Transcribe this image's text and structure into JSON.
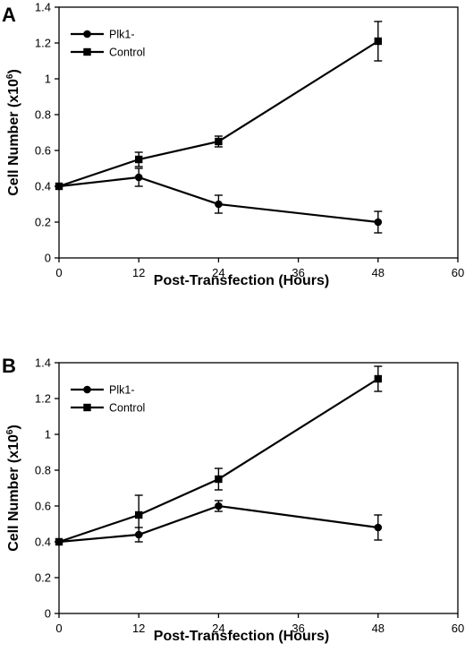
{
  "chart_data": [
    {
      "type": "line",
      "panel_label": "A",
      "xlabel": "Post-Transfection (Hours)",
      "ylabel": "Cell Number (x10",
      "ylabel_exponent": "6",
      "ylabel_close": ")",
      "xlim": [
        0,
        60
      ],
      "ylim": [
        0,
        1.4
      ],
      "x_ticks": [
        "0",
        "12",
        "24",
        "36",
        "48",
        "60"
      ],
      "y_ticks": [
        "0",
        "0.2",
        "0.4",
        "0.6",
        "0.8",
        "1",
        "1.2",
        "1.4"
      ],
      "grid": false,
      "legend_position": "top-left",
      "series": [
        {
          "name": "Plk1-",
          "marker": "circle",
          "x": [
            0,
            12,
            24,
            48
          ],
          "y": [
            0.4,
            0.45,
            0.3,
            0.2
          ],
          "error": [
            0,
            0.05,
            0.05,
            0.06
          ]
        },
        {
          "name": "Control",
          "marker": "square",
          "x": [
            0,
            12,
            24,
            48
          ],
          "y": [
            0.4,
            0.55,
            0.65,
            1.21
          ],
          "error": [
            0,
            0.04,
            0.03,
            0.11
          ]
        }
      ]
    },
    {
      "type": "line",
      "panel_label": "B",
      "xlabel": "Post-Transfection (Hours)",
      "ylabel": "Cell Number (x10",
      "ylabel_exponent": "6",
      "ylabel_close": ")",
      "xlim": [
        0,
        60
      ],
      "ylim": [
        0,
        1.4
      ],
      "x_ticks": [
        "0",
        "12",
        "24",
        "36",
        "48",
        "60"
      ],
      "y_ticks": [
        "0",
        "0.2",
        "0.4",
        "0.6",
        "0.8",
        "1",
        "1.2",
        "1.4"
      ],
      "grid": false,
      "legend_position": "top-left",
      "series": [
        {
          "name": "Plk1-",
          "marker": "circle",
          "x": [
            0,
            12,
            24,
            48
          ],
          "y": [
            0.4,
            0.44,
            0.6,
            0.48
          ],
          "error": [
            0,
            0.04,
            0.03,
            0.07
          ]
        },
        {
          "name": "Control",
          "marker": "square",
          "x": [
            0,
            12,
            24,
            48
          ],
          "y": [
            0.4,
            0.55,
            0.75,
            1.31
          ],
          "error": [
            0,
            0.11,
            0.06,
            0.07
          ]
        }
      ]
    }
  ]
}
